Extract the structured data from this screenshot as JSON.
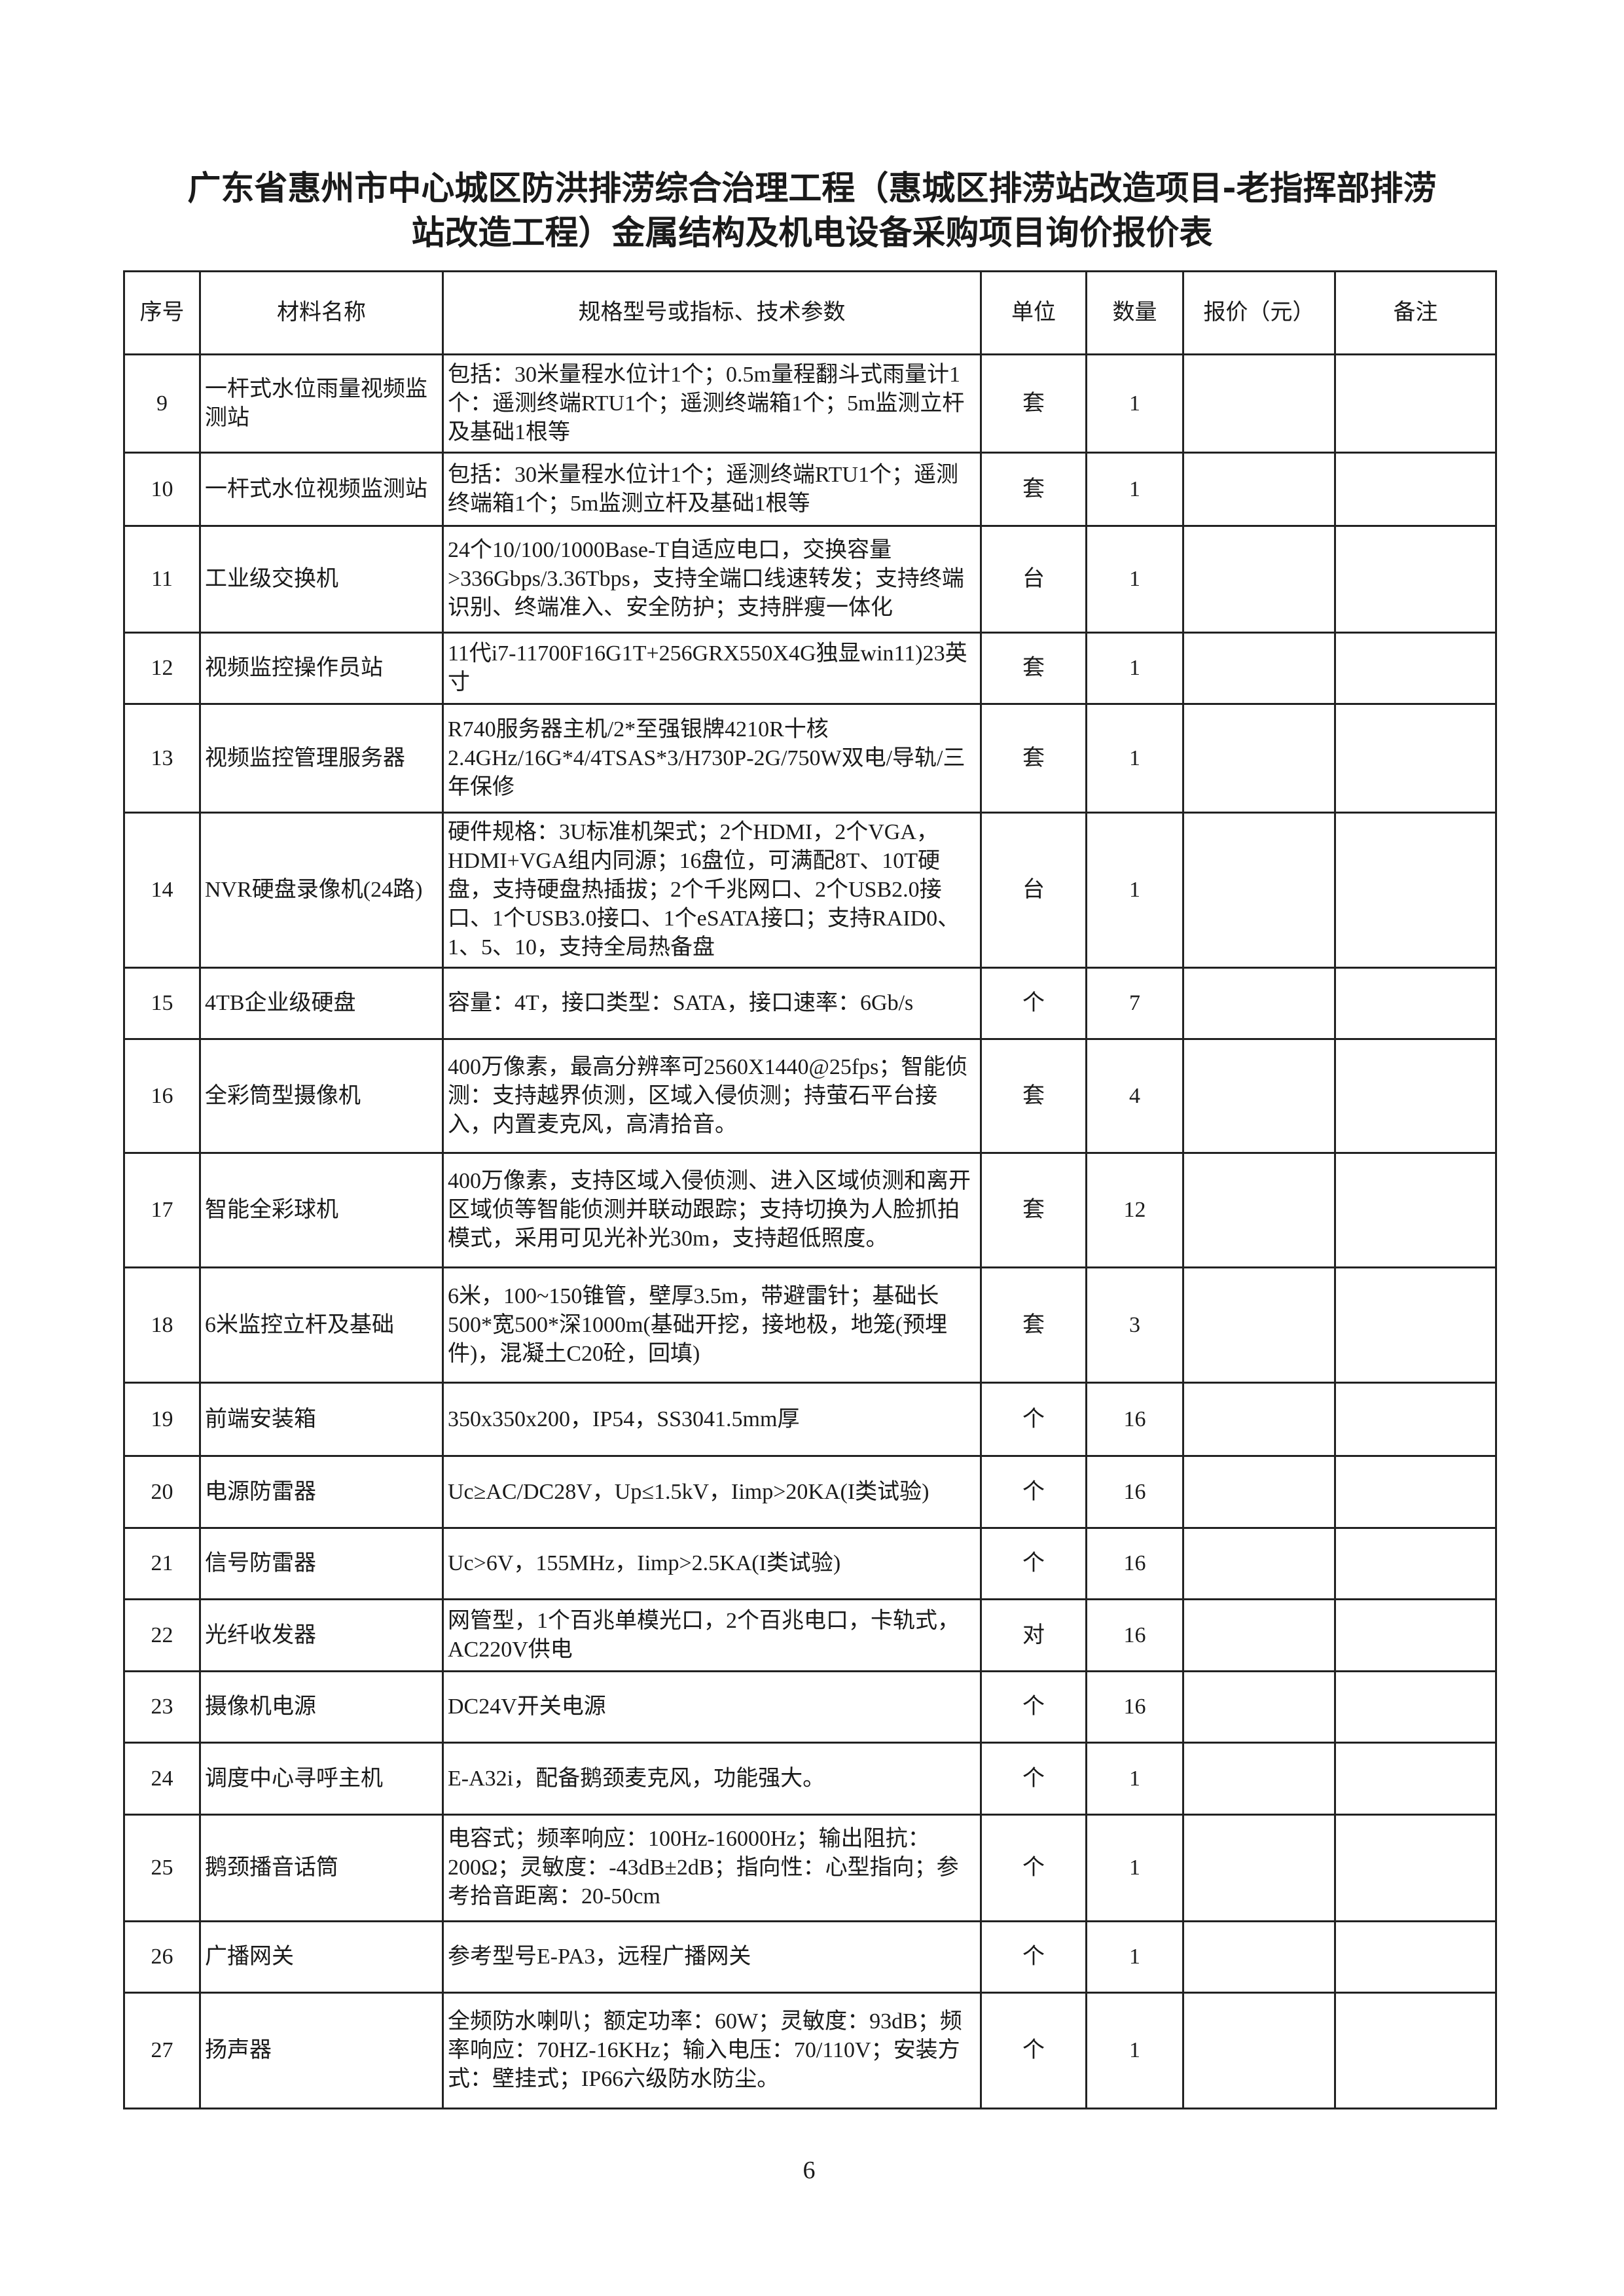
{
  "title": {
    "line1": "广东省惠州市中心城区防洪排涝综合治理工程（惠城区排涝站改造项目-老指挥部排涝",
    "line2": "站改造工程）金属结构及机电设备采购项目询价报价表"
  },
  "table": {
    "headers": [
      "序号",
      "材料名称",
      "规格型号或指标、技术参数",
      "单位",
      "数量",
      "报价（元）",
      "备注"
    ],
    "rows": [
      {
        "no": "9",
        "name": "一杆式水位雨量视频监测站",
        "spec": "包括：30米量程水位计1个；0.5m量程翻斗式雨量计1个：遥测终端RTU1个；遥测终端箱1个；5m监测立杆及基础1根等",
        "unit": "套",
        "qty": "1",
        "price": "",
        "note": ""
      },
      {
        "no": "10",
        "name": "一杆式水位视频监测站",
        "spec": "包括：30米量程水位计1个；遥测终端RTU1个；遥测终端箱1个；5m监测立杆及基础1根等",
        "unit": "套",
        "qty": "1",
        "price": "",
        "note": ""
      },
      {
        "no": "11",
        "name": "工业级交换机",
        "spec": "24个10/100/1000Base-T自适应电口，交换容量>336Gbps/3.36Tbps，支持全端口线速转发；支持终端识别、终端准入、安全防护；支持胖瘦一体化",
        "unit": "台",
        "qty": "1",
        "price": "",
        "note": ""
      },
      {
        "no": "12",
        "name": "视频监控操作员站",
        "spec": "11代i7-11700F16G1T+256GRX550X4G独显win11)23英寸",
        "unit": "套",
        "qty": "1",
        "price": "",
        "note": ""
      },
      {
        "no": "13",
        "name": "视频监控管理服务器",
        "spec": "R740服务器主机/2*至强银牌4210R十核2.4GHz/16G*4/4TSAS*3/H730P-2G/750W双电/导轨/三年保修",
        "unit": "套",
        "qty": "1",
        "price": "",
        "note": ""
      },
      {
        "no": "14",
        "name": "NVR硬盘录像机(24路)",
        "spec": "硬件规格：3U标准机架式；2个HDMI，2个VGA，HDMI+VGA组内同源；16盘位，可满配8T、10T硬盘，支持硬盘热插拔；2个千兆网口、2个USB2.0接口、1个USB3.0接口、1个eSATA接口；支持RAID0、1、5、10，支持全局热备盘",
        "unit": "台",
        "qty": "1",
        "price": "",
        "note": ""
      },
      {
        "no": "15",
        "name": "4TB企业级硬盘",
        "spec": "容量：4T，接口类型：SATA，接口速率：6Gb/s",
        "unit": "个",
        "qty": "7",
        "price": "",
        "note": ""
      },
      {
        "no": "16",
        "name": "全彩筒型摄像机",
        "spec": "400万像素，最高分辨率可2560X1440@25fps；智能侦测：支持越界侦测，区域入侵侦测；持萤石平台接入，内置麦克风，高清拾音。",
        "unit": "套",
        "qty": "4",
        "price": "",
        "note": ""
      },
      {
        "no": "17",
        "name": "智能全彩球机",
        "spec": "400万像素，支持区域入侵侦测、进入区域侦测和离开区域侦等智能侦测并联动跟踪；支持切换为人脸抓拍模式，采用可见光补光30m，支持超低照度。",
        "unit": "套",
        "qty": "12",
        "price": "",
        "note": ""
      },
      {
        "no": "18",
        "name": "6米监控立杆及基础",
        "spec": "6米，100~150锥管，壁厚3.5m，带避雷针；基础长500*宽500*深1000m(基础开挖，接地极，地笼(预埋件)，混凝土C20砼，回填)",
        "unit": "套",
        "qty": "3",
        "price": "",
        "note": ""
      },
      {
        "no": "19",
        "name": "前端安装箱",
        "spec": "350x350x200，IP54，SS3041.5mm厚",
        "unit": "个",
        "qty": "16",
        "price": "",
        "note": ""
      },
      {
        "no": "20",
        "name": "电源防雷器",
        "spec": "Uc≥AC/DC28V，Up≤1.5kV，Iimp>20KA(I类试验)",
        "unit": "个",
        "qty": "16",
        "price": "",
        "note": ""
      },
      {
        "no": "21",
        "name": "信号防雷器",
        "spec": "Uc>6V，155MHz，Iimp>2.5KA(I类试验)",
        "unit": "个",
        "qty": "16",
        "price": "",
        "note": ""
      },
      {
        "no": "22",
        "name": "光纤收发器",
        "spec": "网管型，1个百兆单模光口，2个百兆电口，卡轨式，AC220V供电",
        "unit": "对",
        "qty": "16",
        "price": "",
        "note": ""
      },
      {
        "no": "23",
        "name": "摄像机电源",
        "spec": "DC24V开关电源",
        "unit": "个",
        "qty": "16",
        "price": "",
        "note": ""
      },
      {
        "no": "24",
        "name": "调度中心寻呼主机",
        "spec": "E-A32i，配备鹅颈麦克风，功能强大。",
        "unit": "个",
        "qty": "1",
        "price": "",
        "note": ""
      },
      {
        "no": "25",
        "name": "鹅颈播音话筒",
        "spec": "电容式；频率响应：100Hz-16000Hz；输出阻抗：200Ω；灵敏度：-43dB±2dB；指向性：心型指向；参考拾音距离：20-50cm",
        "unit": "个",
        "qty": "1",
        "price": "",
        "note": ""
      },
      {
        "no": "26",
        "name": "广播网关",
        "spec": "参考型号E-PA3，远程广播网关",
        "unit": "个",
        "qty": "1",
        "price": "",
        "note": ""
      },
      {
        "no": "27",
        "name": "扬声器",
        "spec": "全频防水喇叭；额定功率：60W；灵敏度：93dB；频率响应：70HZ-16KHz；输入电压：70/110V；安装方式：壁挂式；IP66六级防水防尘。",
        "unit": "个",
        "qty": "1",
        "price": "",
        "note": ""
      }
    ]
  },
  "page_number": "6"
}
